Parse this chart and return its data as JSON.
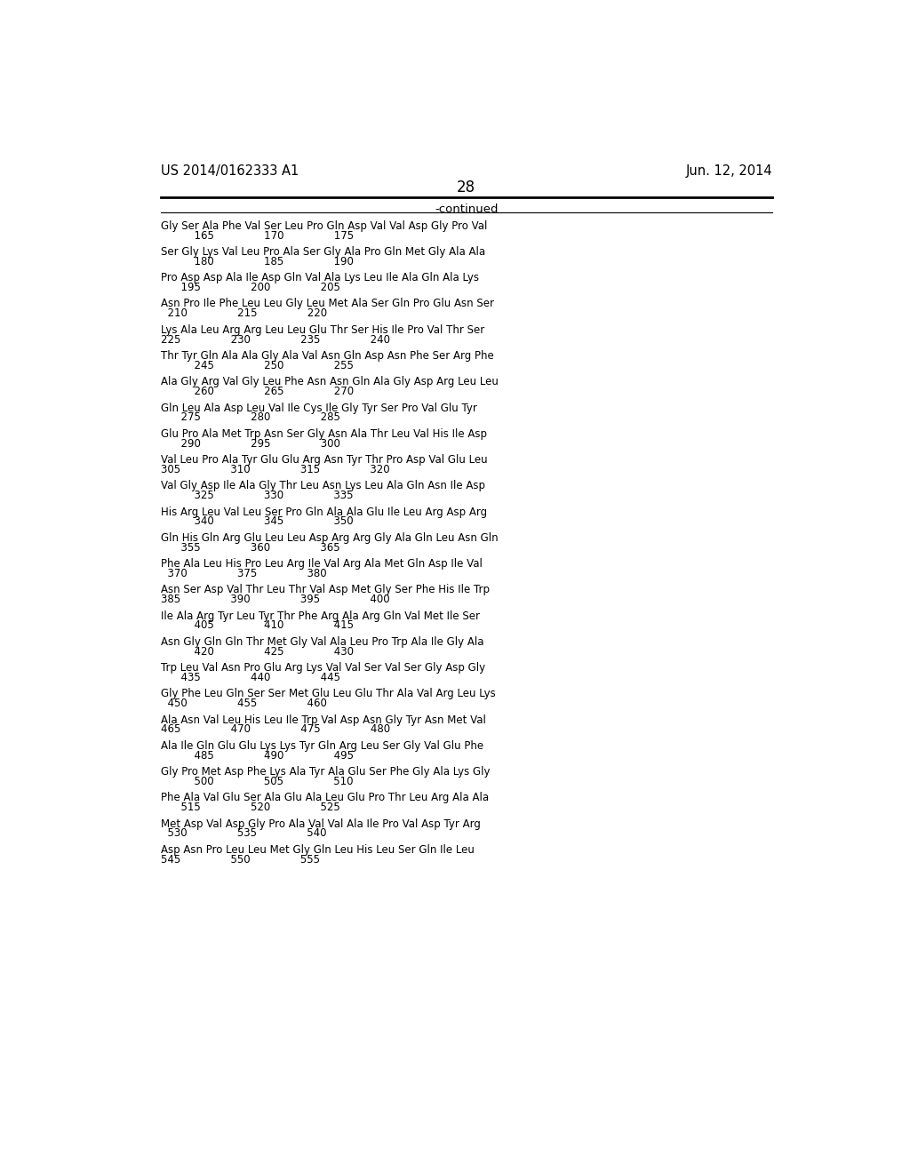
{
  "patent_number": "US 2014/0162333 A1",
  "patent_date": "Jun. 12, 2014",
  "page_number": "28",
  "continued_label": "-continued",
  "background_color": "#ffffff",
  "text_color": "#000000",
  "sequence_blocks": [
    {
      "aa": "Gly Ser Ala Phe Val Ser Leu Pro Gln Asp Val Val Asp Gly Pro Val",
      "num_line": "          165               170               175"
    },
    {
      "aa": "Ser Gly Lys Val Leu Pro Ala Ser Gly Ala Pro Gln Met Gly Ala Ala",
      "num_line": "          180               185               190"
    },
    {
      "aa": "Pro Asp Asp Ala Ile Asp Gln Val Ala Lys Leu Ile Ala Gln Ala Lys",
      "num_line": "      195               200               205"
    },
    {
      "aa": "Asn Pro Ile Phe Leu Leu Gly Leu Met Ala Ser Gln Pro Glu Asn Ser",
      "num_line": "  210               215               220"
    },
    {
      "aa": "Lys Ala Leu Arg Arg Leu Leu Glu Thr Ser His Ile Pro Val Thr Ser",
      "num_line": "225               230               235               240"
    },
    {
      "aa": "Thr Tyr Gln Ala Ala Gly Ala Val Asn Gln Asp Asn Phe Ser Arg Phe",
      "num_line": "          245               250               255"
    },
    {
      "aa": "Ala Gly Arg Val Gly Leu Phe Asn Asn Gln Ala Gly Asp Arg Leu Leu",
      "num_line": "          260               265               270"
    },
    {
      "aa": "Gln Leu Ala Asp Leu Val Ile Cys Ile Gly Tyr Ser Pro Val Glu Tyr",
      "num_line": "      275               280               285"
    },
    {
      "aa": "Glu Pro Ala Met Trp Asn Ser Gly Asn Ala Thr Leu Val His Ile Asp",
      "num_line": "      290               295               300"
    },
    {
      "aa": "Val Leu Pro Ala Tyr Glu Glu Arg Asn Tyr Thr Pro Asp Val Glu Leu",
      "num_line": "305               310               315               320"
    },
    {
      "aa": "Val Gly Asp Ile Ala Gly Thr Leu Asn Lys Leu Ala Gln Asn Ile Asp",
      "num_line": "          325               330               335"
    },
    {
      "aa": "His Arg Leu Val Leu Ser Pro Gln Ala Ala Glu Ile Leu Arg Asp Arg",
      "num_line": "          340               345               350"
    },
    {
      "aa": "Gln His Gln Arg Glu Leu Leu Asp Arg Arg Gly Ala Gln Leu Asn Gln",
      "num_line": "      355               360               365"
    },
    {
      "aa": "Phe Ala Leu His Pro Leu Arg Ile Val Arg Ala Met Gln Asp Ile Val",
      "num_line": "  370               375               380"
    },
    {
      "aa": "Asn Ser Asp Val Thr Leu Thr Val Asp Met Gly Ser Phe His Ile Trp",
      "num_line": "385               390               395               400"
    },
    {
      "aa": "Ile Ala Arg Tyr Leu Tyr Thr Phe Arg Ala Arg Gln Val Met Ile Ser",
      "num_line": "          405               410               415"
    },
    {
      "aa": "Asn Gly Gln Gln Thr Met Gly Val Ala Leu Pro Trp Ala Ile Gly Ala",
      "num_line": "          420               425               430"
    },
    {
      "aa": "Trp Leu Val Asn Pro Glu Arg Lys Val Val Ser Val Ser Gly Asp Gly",
      "num_line": "      435               440               445"
    },
    {
      "aa": "Gly Phe Leu Gln Ser Ser Met Glu Leu Glu Thr Ala Val Arg Leu Lys",
      "num_line": "  450               455               460"
    },
    {
      "aa": "Ala Asn Val Leu His Leu Ile Trp Val Asp Asn Gly Tyr Asn Met Val",
      "num_line": "465               470               475               480"
    },
    {
      "aa": "Ala Ile Gln Glu Glu Lys Lys Tyr Gln Arg Leu Ser Gly Val Glu Phe",
      "num_line": "          485               490               495"
    },
    {
      "aa": "Gly Pro Met Asp Phe Lys Ala Tyr Ala Glu Ser Phe Gly Ala Lys Gly",
      "num_line": "          500               505               510"
    },
    {
      "aa": "Phe Ala Val Glu Ser Ala Glu Ala Leu Glu Pro Thr Leu Arg Ala Ala",
      "num_line": "      515               520               525"
    },
    {
      "aa": "Met Asp Val Asp Gly Pro Ala Val Val Ala Ile Pro Val Asp Tyr Arg",
      "num_line": "  530               535               540"
    },
    {
      "aa": "Asp Asn Pro Leu Leu Met Gly Gln Leu His Leu Ser Gln Ile Leu",
      "num_line": "545               550               555"
    }
  ]
}
